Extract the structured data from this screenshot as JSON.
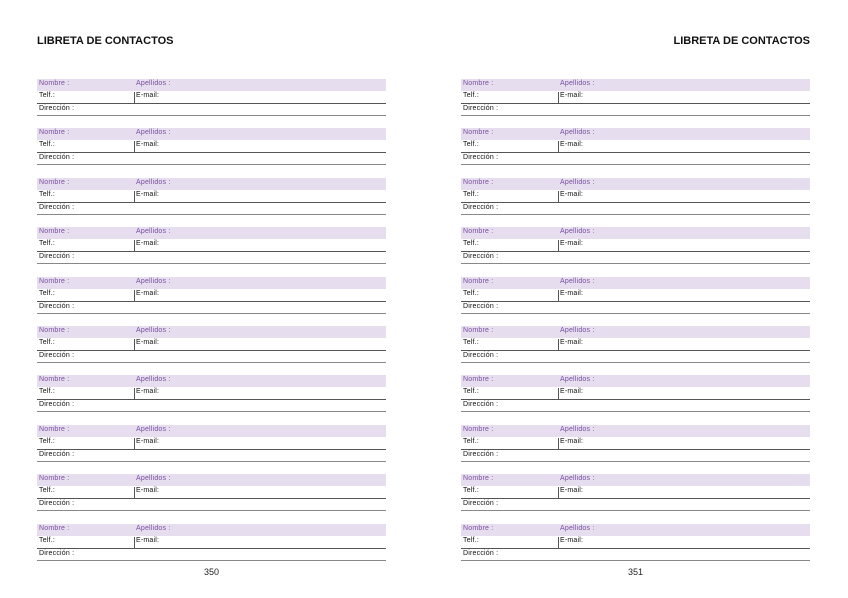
{
  "pages": [
    {
      "title": "LIBRETA DE CONTACTOS",
      "page_number": "350"
    },
    {
      "title": "LIBRETA DE CONTACTOS",
      "page_number": "351"
    }
  ],
  "labels": {
    "nombre": "Nombre :",
    "apellidos": "Apellidos :",
    "telf": "Telf.:",
    "email": "E-mail:",
    "direccion": "Dirección :"
  },
  "entries_per_page": 10,
  "colors": {
    "header_fill": "#e6deef",
    "label_purple": "#7a4fa0"
  }
}
